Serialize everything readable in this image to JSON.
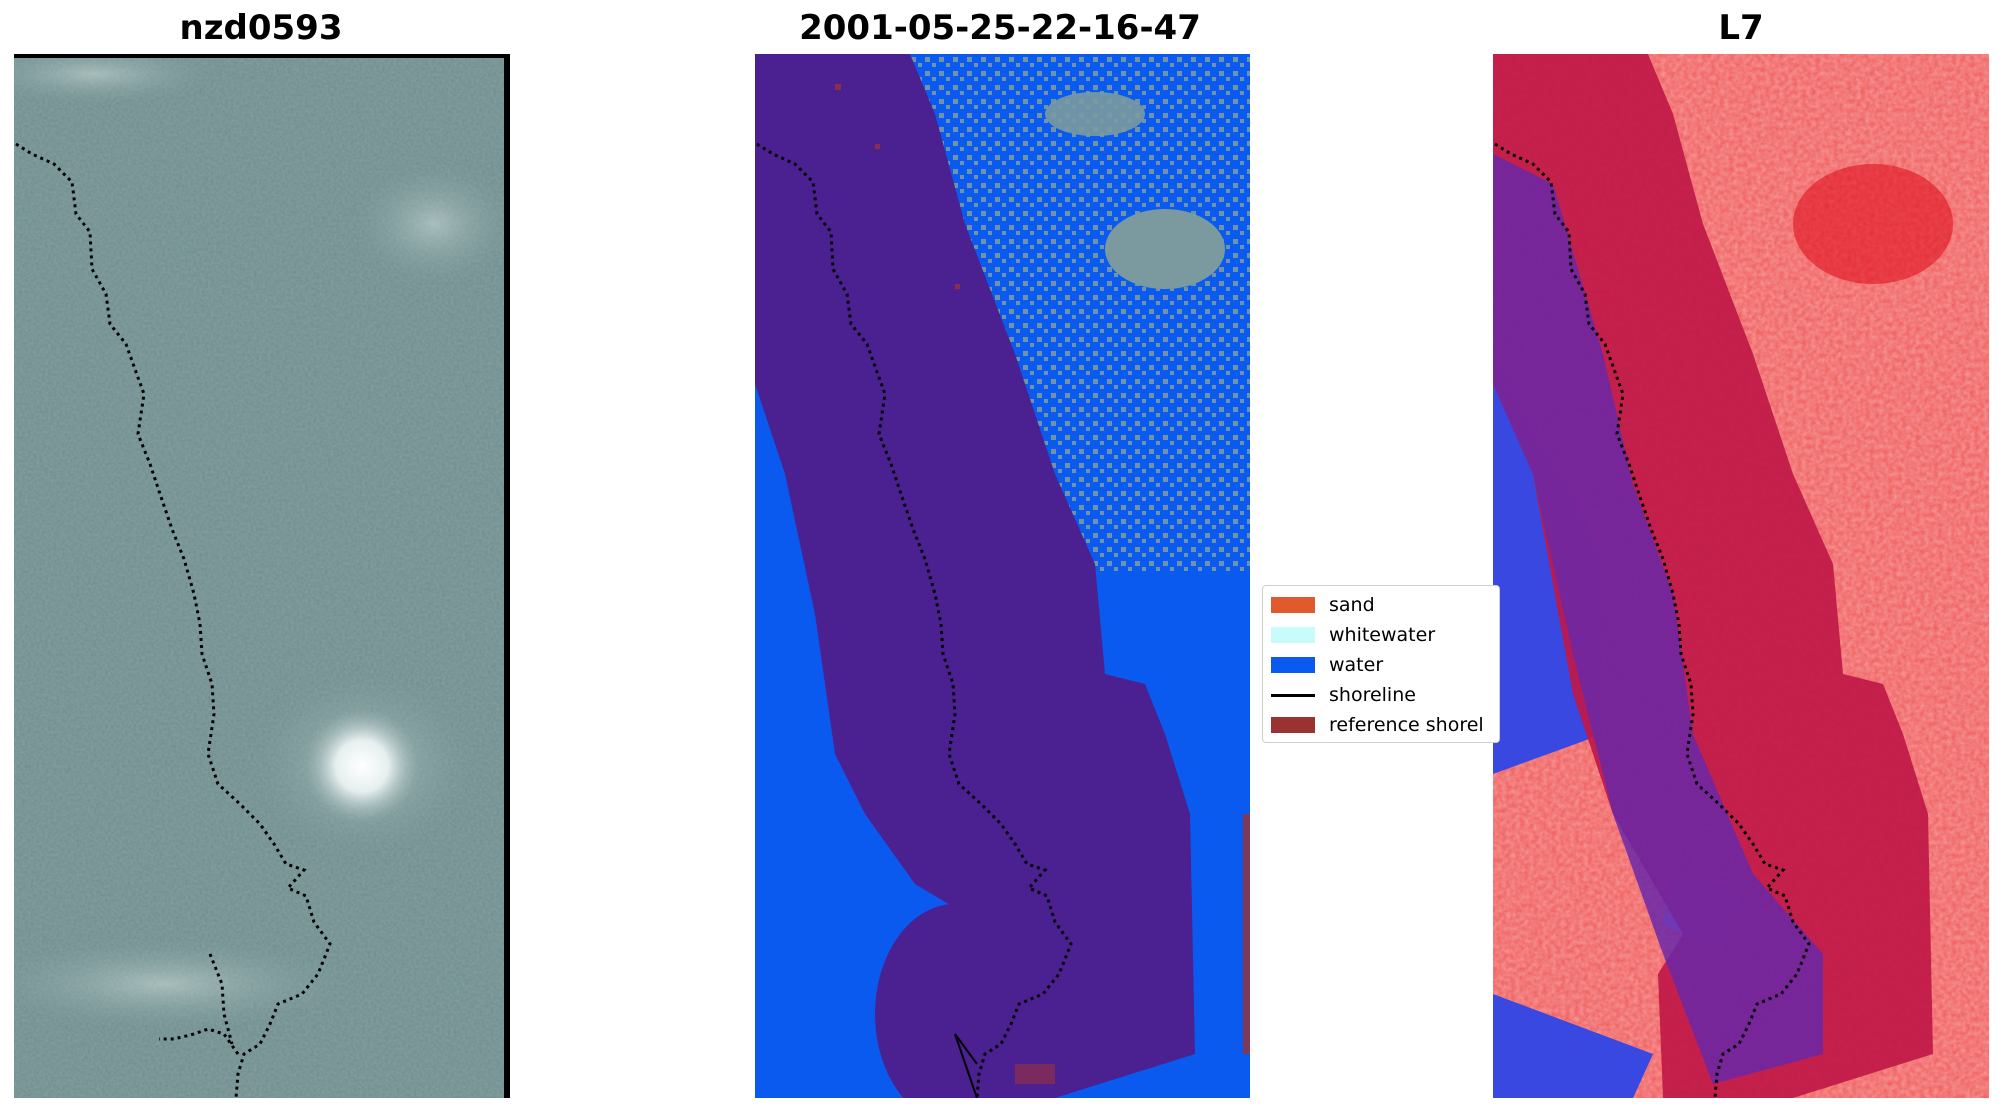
{
  "panels": {
    "left": {
      "title": "nzd0593"
    },
    "middle": {
      "title": "2001-05-25-22-16-47"
    },
    "right": {
      "title": "L7"
    }
  },
  "legend": {
    "items": [
      {
        "label": "sand",
        "color": "#e05a2e",
        "kind": "patch"
      },
      {
        "label": "whitewater",
        "color": "#c8fbfb",
        "kind": "patch"
      },
      {
        "label": "water",
        "color": "#0a5af0",
        "kind": "patch"
      },
      {
        "label": "shoreline",
        "color": "#000000",
        "kind": "line"
      },
      {
        "label": "reference shorel",
        "color": "#9a3232",
        "kind": "patch"
      }
    ]
  },
  "colors": {
    "rgb_background": "#6c8a8a",
    "water": "#0a5af0",
    "buffer": "#4b2090",
    "land_gray": "#7a9aa0",
    "index_red": "#d0183a",
    "index_blue": "#3040d0"
  }
}
